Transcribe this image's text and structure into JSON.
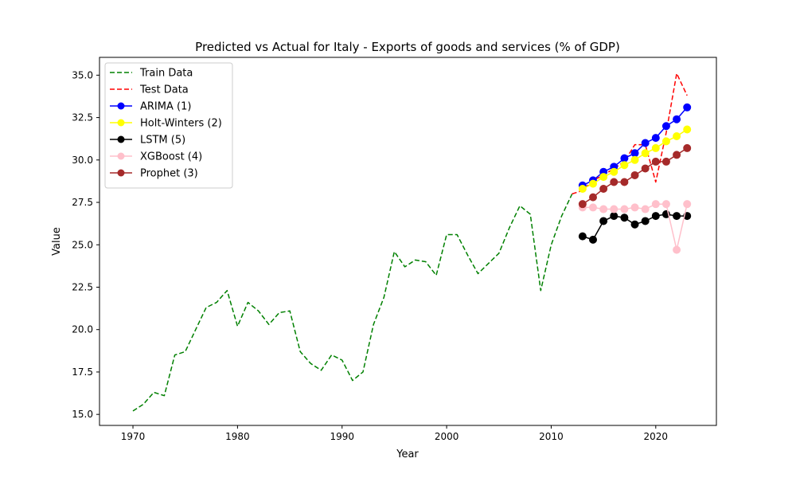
{
  "chart_data": {
    "type": "line",
    "title": "Predicted vs Actual for Italy - Exports of goods and services (% of GDP)",
    "xlabel": "Year",
    "ylabel": "Value",
    "xlim": [
      1966.8,
      2025.8
    ],
    "ylim": [
      14.35,
      36.05
    ],
    "xticks": [
      1970,
      1980,
      1990,
      2000,
      2010,
      2020
    ],
    "yticks": [
      "15.0",
      "17.5",
      "20.0",
      "22.5",
      "25.0",
      "27.5",
      "30.0",
      "32.5",
      "35.0"
    ],
    "legend_position": "upper-left",
    "series": [
      {
        "name": "Train Data",
        "color": "#008000",
        "style": "dashed",
        "marker": false,
        "x": [
          1970,
          1971,
          1972,
          1973,
          1974,
          1975,
          1976,
          1977,
          1978,
          1979,
          1980,
          1981,
          1982,
          1983,
          1984,
          1985,
          1986,
          1987,
          1988,
          1989,
          1990,
          1991,
          1992,
          1993,
          1994,
          1995,
          1996,
          1997,
          1998,
          1999,
          2000,
          2001,
          2002,
          2003,
          2004,
          2005,
          2006,
          2007,
          2008,
          2009,
          2010,
          2011,
          2012
        ],
        "y": [
          15.2,
          15.6,
          16.3,
          16.1,
          18.5,
          18.7,
          20.0,
          21.3,
          21.6,
          22.3,
          20.2,
          21.6,
          21.1,
          20.3,
          21.0,
          21.1,
          18.7,
          18.0,
          17.6,
          18.5,
          18.2,
          17.0,
          17.5,
          20.3,
          21.9,
          24.6,
          23.7,
          24.1,
          24.0,
          23.2,
          25.6,
          25.6,
          24.4,
          23.3,
          23.9,
          24.5,
          26.0,
          27.3,
          26.8,
          22.3,
          25.0,
          26.7,
          28.0
        ]
      },
      {
        "name": "Test Data",
        "color": "#ff0000",
        "style": "dashed",
        "marker": false,
        "x": [
          2012,
          2013,
          2014,
          2015,
          2016,
          2017,
          2018,
          2019,
          2020,
          2021,
          2022,
          2023
        ],
        "y": [
          28.0,
          28.2,
          28.8,
          29.1,
          29.5,
          29.9,
          30.9,
          30.9,
          28.7,
          31.6,
          35.1,
          33.8
        ]
      },
      {
        "name": "ARIMA (1)",
        "color": "#0000ff",
        "style": "solid",
        "marker": true,
        "x": [
          2013,
          2014,
          2015,
          2016,
          2017,
          2018,
          2019,
          2020,
          2021,
          2022,
          2023
        ],
        "y": [
          28.5,
          28.8,
          29.3,
          29.6,
          30.1,
          30.4,
          31.0,
          31.3,
          32.0,
          32.4,
          33.1
        ]
      },
      {
        "name": "Holt-Winters (2)",
        "color": "#ffff00",
        "style": "solid",
        "marker": true,
        "x": [
          2013,
          2014,
          2015,
          2016,
          2017,
          2018,
          2019,
          2020,
          2021,
          2022,
          2023
        ],
        "y": [
          28.3,
          28.6,
          29.0,
          29.3,
          29.7,
          30.0,
          30.4,
          30.7,
          31.1,
          31.4,
          31.8
        ]
      },
      {
        "name": "LSTM (5)",
        "color": "#000000",
        "style": "solid",
        "marker": true,
        "x": [
          2013,
          2014,
          2015,
          2016,
          2017,
          2018,
          2019,
          2020,
          2021,
          2022,
          2023
        ],
        "y": [
          25.5,
          25.3,
          26.4,
          26.7,
          26.6,
          26.2,
          26.4,
          26.7,
          26.8,
          26.7,
          26.7
        ]
      },
      {
        "name": "XGBoost (4)",
        "color": "#ffc0cb",
        "style": "solid",
        "marker": true,
        "x": [
          2013,
          2014,
          2015,
          2016,
          2017,
          2018,
          2019,
          2020,
          2021,
          2022,
          2023
        ],
        "y": [
          27.2,
          27.2,
          27.1,
          27.1,
          27.1,
          27.2,
          27.1,
          27.4,
          27.4,
          24.7,
          27.4
        ]
      },
      {
        "name": "Prophet (3)",
        "color": "#a52a2a",
        "style": "solid",
        "marker": true,
        "x": [
          2013,
          2014,
          2015,
          2016,
          2017,
          2018,
          2019,
          2020,
          2021,
          2022,
          2023
        ],
        "y": [
          27.4,
          27.8,
          28.3,
          28.7,
          28.7,
          29.1,
          29.5,
          29.9,
          29.9,
          30.3,
          30.7
        ]
      }
    ]
  }
}
